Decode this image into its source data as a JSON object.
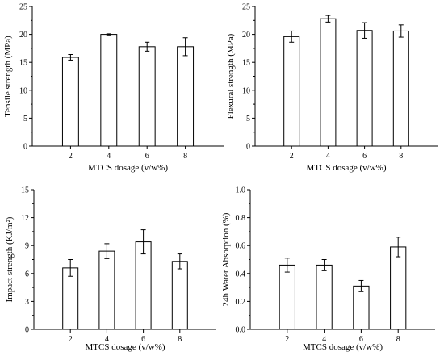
{
  "chart_data": [
    {
      "type": "bar",
      "categories": [
        "2",
        "4",
        "6",
        "8"
      ],
      "values": [
        15.9,
        20.0,
        17.8,
        17.8
      ],
      "errors": [
        0.5,
        0.1,
        0.8,
        1.6
      ],
      "xlabel": "MTCS dosage (v/w%)",
      "ylabel": "Tensile strength (MPa)",
      "ylim": [
        0,
        25
      ],
      "yticks": [
        "0",
        "5",
        "10",
        "15",
        "20",
        "25"
      ]
    },
    {
      "type": "bar",
      "categories": [
        "2",
        "4",
        "6",
        "8"
      ],
      "values": [
        19.6,
        22.8,
        20.7,
        20.6
      ],
      "errors": [
        1.0,
        0.6,
        1.4,
        1.1
      ],
      "xlabel": "MTCS dosage (v/w%)",
      "ylabel": "Flexural strength (MPa)",
      "ylim": [
        0,
        25
      ],
      "yticks": [
        "0",
        "5",
        "10",
        "15",
        "20",
        "25"
      ]
    },
    {
      "type": "bar",
      "categories": [
        "2",
        "4",
        "6",
        "8"
      ],
      "values": [
        6.6,
        8.4,
        9.4,
        7.3
      ],
      "errors": [
        0.9,
        0.8,
        1.3,
        0.8
      ],
      "xlabel": "MTCS dosage (v/w%)",
      "ylabel": "Impact strength (KJ/m²)",
      "ylim": [
        0,
        15
      ],
      "yticks": [
        "0",
        "3",
        "6",
        "9",
        "12",
        "15"
      ]
    },
    {
      "type": "bar",
      "categories": [
        "2",
        "4",
        "6",
        "8"
      ],
      "values": [
        0.46,
        0.46,
        0.31,
        0.59
      ],
      "errors": [
        0.05,
        0.04,
        0.04,
        0.07
      ],
      "xlabel": "MTCS dosage (v/w%)",
      "ylabel": "24h Water Absorption (%)",
      "ylim": [
        0,
        1.0
      ],
      "yticks": [
        "0.0",
        "0.2",
        "0.4",
        "0.6",
        "0.8",
        "1.0"
      ]
    }
  ]
}
